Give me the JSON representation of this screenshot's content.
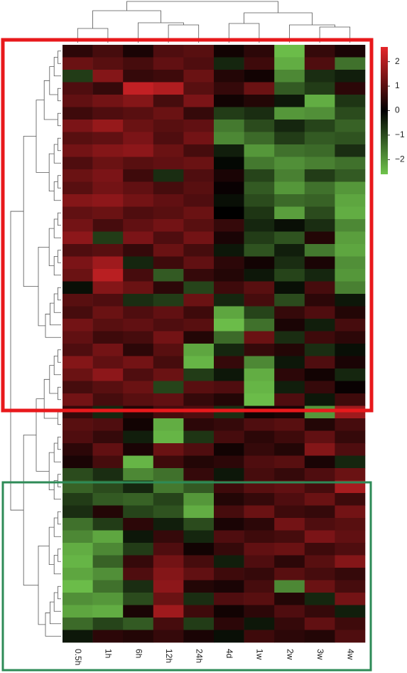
{
  "chart_data": {
    "type": "heatmap",
    "categories": [
      "0.5h",
      "1h",
      "6h",
      "12h",
      "24h",
      "4d",
      "1w",
      "2w",
      "3w",
      "4w"
    ],
    "values": [
      [
        0.5,
        0.8,
        0.3,
        0.9,
        1.0,
        0.2,
        0.5,
        -2.5,
        0.6,
        0.3
      ],
      [
        1.2,
        1.0,
        0.8,
        1.1,
        0.9,
        -0.5,
        0.7,
        -2.3,
        0.9,
        -1.5
      ],
      [
        -0.8,
        1.5,
        0.6,
        0.7,
        1.2,
        0.4,
        0.2,
        -1.8,
        -0.6,
        -0.4
      ],
      [
        0.9,
        0.6,
        2.2,
        2.0,
        1.0,
        0.6,
        1.2,
        -1.2,
        -0.8,
        0.5
      ],
      [
        1.1,
        1.3,
        1.5,
        0.8,
        1.4,
        0.2,
        0.4,
        -0.3,
        -2.3,
        -0.7
      ],
      [
        0.7,
        0.9,
        1.0,
        1.2,
        0.6,
        -0.8,
        -0.6,
        -2.0,
        -1.9,
        -1.0
      ],
      [
        1.4,
        1.7,
        1.2,
        1.0,
        1.1,
        -1.6,
        -1.0,
        -0.5,
        -0.9,
        -1.3
      ],
      [
        1.0,
        1.1,
        1.4,
        0.9,
        1.3,
        -1.8,
        -1.4,
        -0.8,
        -1.2,
        -1.1
      ],
      [
        1.3,
        1.5,
        1.6,
        1.2,
        0.8,
        -0.4,
        -2.0,
        -1.5,
        -1.4,
        -0.6
      ],
      [
        0.9,
        1.2,
        1.0,
        1.1,
        1.2,
        -0.1,
        -1.6,
        -1.9,
        -1.7,
        -1.5
      ],
      [
        1.2,
        1.4,
        0.7,
        -0.6,
        0.9,
        0.3,
        -0.9,
        -1.7,
        -0.8,
        -1.2
      ],
      [
        1.0,
        1.3,
        1.1,
        0.8,
        1.0,
        0.1,
        -1.2,
        -2.0,
        -1.5,
        -2.0
      ],
      [
        1.5,
        1.6,
        1.3,
        1.1,
        0.9,
        -0.2,
        -1.0,
        -1.4,
        -1.3,
        -2.2
      ],
      [
        1.1,
        1.2,
        0.9,
        1.0,
        1.2,
        0.0,
        -0.7,
        -2.1,
        -1.0,
        -2.3
      ],
      [
        1.3,
        0.8,
        1.1,
        1.3,
        1.0,
        0.6,
        -0.5,
        -0.2,
        -0.6,
        -1.8
      ],
      [
        1.6,
        -0.8,
        1.4,
        0.9,
        1.3,
        0.3,
        -0.8,
        -1.1,
        0.4,
        -2.1
      ],
      [
        0.9,
        1.0,
        0.6,
        1.2,
        0.8,
        -0.3,
        -1.1,
        -0.4,
        -1.6,
        -2.2
      ],
      [
        1.4,
        1.8,
        -0.5,
        0.7,
        1.1,
        0.5,
        0.2,
        -0.6,
        0.3,
        -1.9
      ],
      [
        1.2,
        2.1,
        0.8,
        -1.2,
        0.6,
        0.4,
        -0.3,
        -0.9,
        -0.5,
        -2.0
      ],
      [
        -0.2,
        1.5,
        1.2,
        0.5,
        -0.9,
        0.7,
        1.0,
        -0.2,
        0.8,
        -1.7
      ],
      [
        1.0,
        0.9,
        -0.6,
        -0.8,
        1.2,
        -0.5,
        0.8,
        -1.0,
        0.5,
        -0.3
      ],
      [
        0.8,
        1.2,
        0.9,
        1.1,
        0.7,
        -2.2,
        -0.9,
        0.6,
        0.9,
        0.4
      ],
      [
        1.3,
        1.0,
        1.1,
        0.9,
        1.0,
        -2.5,
        -1.5,
        0.3,
        -0.4,
        0.8
      ],
      [
        1.1,
        0.7,
        0.8,
        1.3,
        0.4,
        -1.4,
        1.2,
        -0.6,
        0.7,
        0.5
      ],
      [
        0.9,
        1.3,
        0.5,
        1.0,
        -2.2,
        -0.5,
        0.6,
        0.4,
        -0.6,
        -0.2
      ],
      [
        1.5,
        1.1,
        1.3,
        0.8,
        -2.4,
        0.6,
        -1.8,
        -0.3,
        0.9,
        0.3
      ],
      [
        1.2,
        1.6,
        0.9,
        1.2,
        -0.8,
        -0.3,
        -2.3,
        0.5,
        0.2,
        -0.5
      ],
      [
        0.8,
        1.0,
        1.2,
        -0.9,
        1.0,
        0.9,
        -2.4,
        -0.4,
        0.6,
        0.1
      ],
      [
        1.3,
        0.8,
        1.0,
        1.1,
        0.6,
        0.4,
        -2.5,
        0.9,
        -0.3,
        0.7
      ],
      [
        0.6,
        -0.5,
        0.4,
        0.8,
        0.9,
        -0.6,
        0.2,
        0.3,
        -2.0,
        1.8
      ],
      [
        1.0,
        0.9,
        0.2,
        -2.3,
        0.5,
        0.6,
        0.9,
        1.0,
        0.4,
        0.8
      ],
      [
        0.9,
        0.6,
        -0.4,
        -2.4,
        -0.7,
        0.8,
        0.5,
        0.7,
        1.1,
        0.6
      ],
      [
        0.5,
        1.1,
        0.3,
        1.2,
        0.9,
        0.2,
        0.6,
        0.4,
        1.5,
        0.9
      ],
      [
        0.3,
        0.8,
        -2.4,
        0.7,
        0.4,
        0.5,
        0.9,
        1.0,
        0.3,
        -0.5
      ],
      [
        -1.0,
        -0.6,
        -1.8,
        -1.5,
        0.6,
        -0.3,
        0.8,
        0.6,
        0.9,
        1.2
      ],
      [
        -1.3,
        -1.0,
        -0.5,
        -1.6,
        -1.2,
        0.7,
        1.0,
        1.1,
        0.8,
        1.9
      ],
      [
        -0.8,
        -1.2,
        -1.3,
        -0.9,
        -2.0,
        0.4,
        0.6,
        0.9,
        1.2,
        0.7
      ],
      [
        -0.6,
        0.4,
        -0.9,
        -1.1,
        -2.3,
        0.8,
        1.2,
        0.7,
        0.6,
        1.3
      ],
      [
        -1.5,
        -0.8,
        0.5,
        -0.4,
        -1.0,
        0.3,
        0.5,
        1.3,
        0.9,
        1.0
      ],
      [
        -1.8,
        -2.2,
        -0.3,
        0.6,
        -0.5,
        0.9,
        0.7,
        0.8,
        1.4,
        1.1
      ],
      [
        -2.3,
        -1.8,
        -0.8,
        0.9,
        0.2,
        0.6,
        1.1,
        1.2,
        0.7,
        0.9
      ],
      [
        -2.4,
        -1.3,
        0.6,
        1.3,
        0.8,
        -0.4,
        0.9,
        0.5,
        1.0,
        1.5
      ],
      [
        -2.2,
        -1.9,
        0.9,
        1.5,
        1.1,
        0.7,
        0.6,
        1.0,
        0.8,
        0.6
      ],
      [
        -2.5,
        -1.5,
        -0.6,
        1.6,
        0.4,
        0.3,
        0.8,
        -1.8,
        1.2,
        0.8
      ],
      [
        -1.9,
        -2.0,
        -1.0,
        1.2,
        -0.6,
        0.9,
        1.0,
        0.4,
        -0.5,
        1.3
      ],
      [
        -2.2,
        -2.3,
        0.3,
        1.8,
        0.7,
        0.2,
        0.5,
        0.9,
        0.6,
        -0.4
      ],
      [
        -1.4,
        -0.9,
        -1.2,
        0.8,
        -0.8,
        0.5,
        -0.3,
        0.6,
        1.1,
        0.7
      ],
      [
        -0.3,
        0.5,
        0.4,
        0.6,
        0.3,
        -0.2,
        0.7,
        0.5,
        0.4,
        0.9
      ]
    ],
    "colors": [
      "#6fc44c",
      "#000000",
      "#e5262a"
    ],
    "zlim": [
      -2.6,
      2.6
    ],
    "zticks": [
      2,
      1,
      0,
      {
        "value": -1,
        "label": "−1"
      },
      {
        "value": -2,
        "label": "−2"
      }
    ]
  }
}
